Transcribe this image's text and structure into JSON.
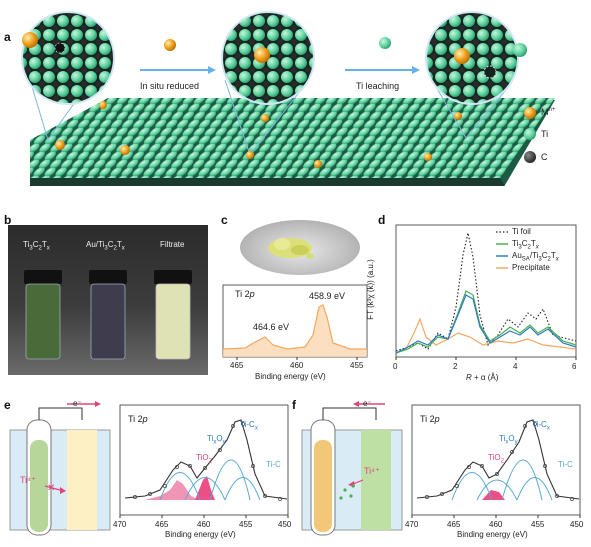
{
  "panels": {
    "a": {
      "label": "a",
      "step1": "In situ reduced",
      "step2": "Ti leaching",
      "legend": [
        {
          "name": "M",
          "sup": "n+",
          "color": "#f0a020"
        },
        {
          "name": "Ti",
          "sup": "",
          "color": "#5fd3a0"
        },
        {
          "name": "C",
          "sup": "",
          "color": "#444444"
        }
      ]
    },
    "b": {
      "label": "b",
      "vials": [
        "Ti3C2Tx",
        "Au/Ti3C2Tx",
        "Filtrate"
      ]
    },
    "c": {
      "label": "c",
      "spectrum_label": "Ti 2p",
      "peak1": "464.6 eV",
      "peak2": "458.9 eV",
      "xlabel": "Binding energy (eV)",
      "xticks": [
        "465",
        "460",
        "455"
      ]
    },
    "d": {
      "label": "d",
      "ylabel": "FT (k³χ (k)) (a.u.)",
      "xlabel": "R + α (Å)",
      "xticks": [
        "0",
        "2",
        "4",
        "6"
      ],
      "legend": [
        "Ti foil",
        "Ti3C2Tx",
        "AuSA/Ti3C2Tx",
        "Precipitate"
      ]
    },
    "e": {
      "label": "e",
      "ion": "Ti⁴⁺",
      "electron": "e⁻",
      "spectrum_label": "Ti 2p",
      "components": [
        "TixOy",
        "TiO2",
        "Ti-Cx",
        "Ti-C"
      ],
      "xlabel": "Binding energy (eV)",
      "xticks": [
        "470",
        "465",
        "460",
        "455",
        "450"
      ]
    },
    "f": {
      "label": "f",
      "ion": "Ti⁴⁺",
      "electron": "e⁻",
      "spectrum_label": "Ti 2p",
      "components": [
        "TixOy",
        "TiO2",
        "Ti-Cx",
        "Ti-C"
      ],
      "xlabel": "Binding energy (eV)",
      "xticks": [
        "470",
        "465",
        "460",
        "455",
        "450"
      ]
    }
  },
  "colors": {
    "ti": "#5fd3a0",
    "metal": "#f0a020",
    "carbon": "#444444",
    "arrow": "#6ab0e8",
    "pink": "#e0457a",
    "blue": "#2a7bc7",
    "green": "#4caf50",
    "orange": "#f5a860"
  }
}
